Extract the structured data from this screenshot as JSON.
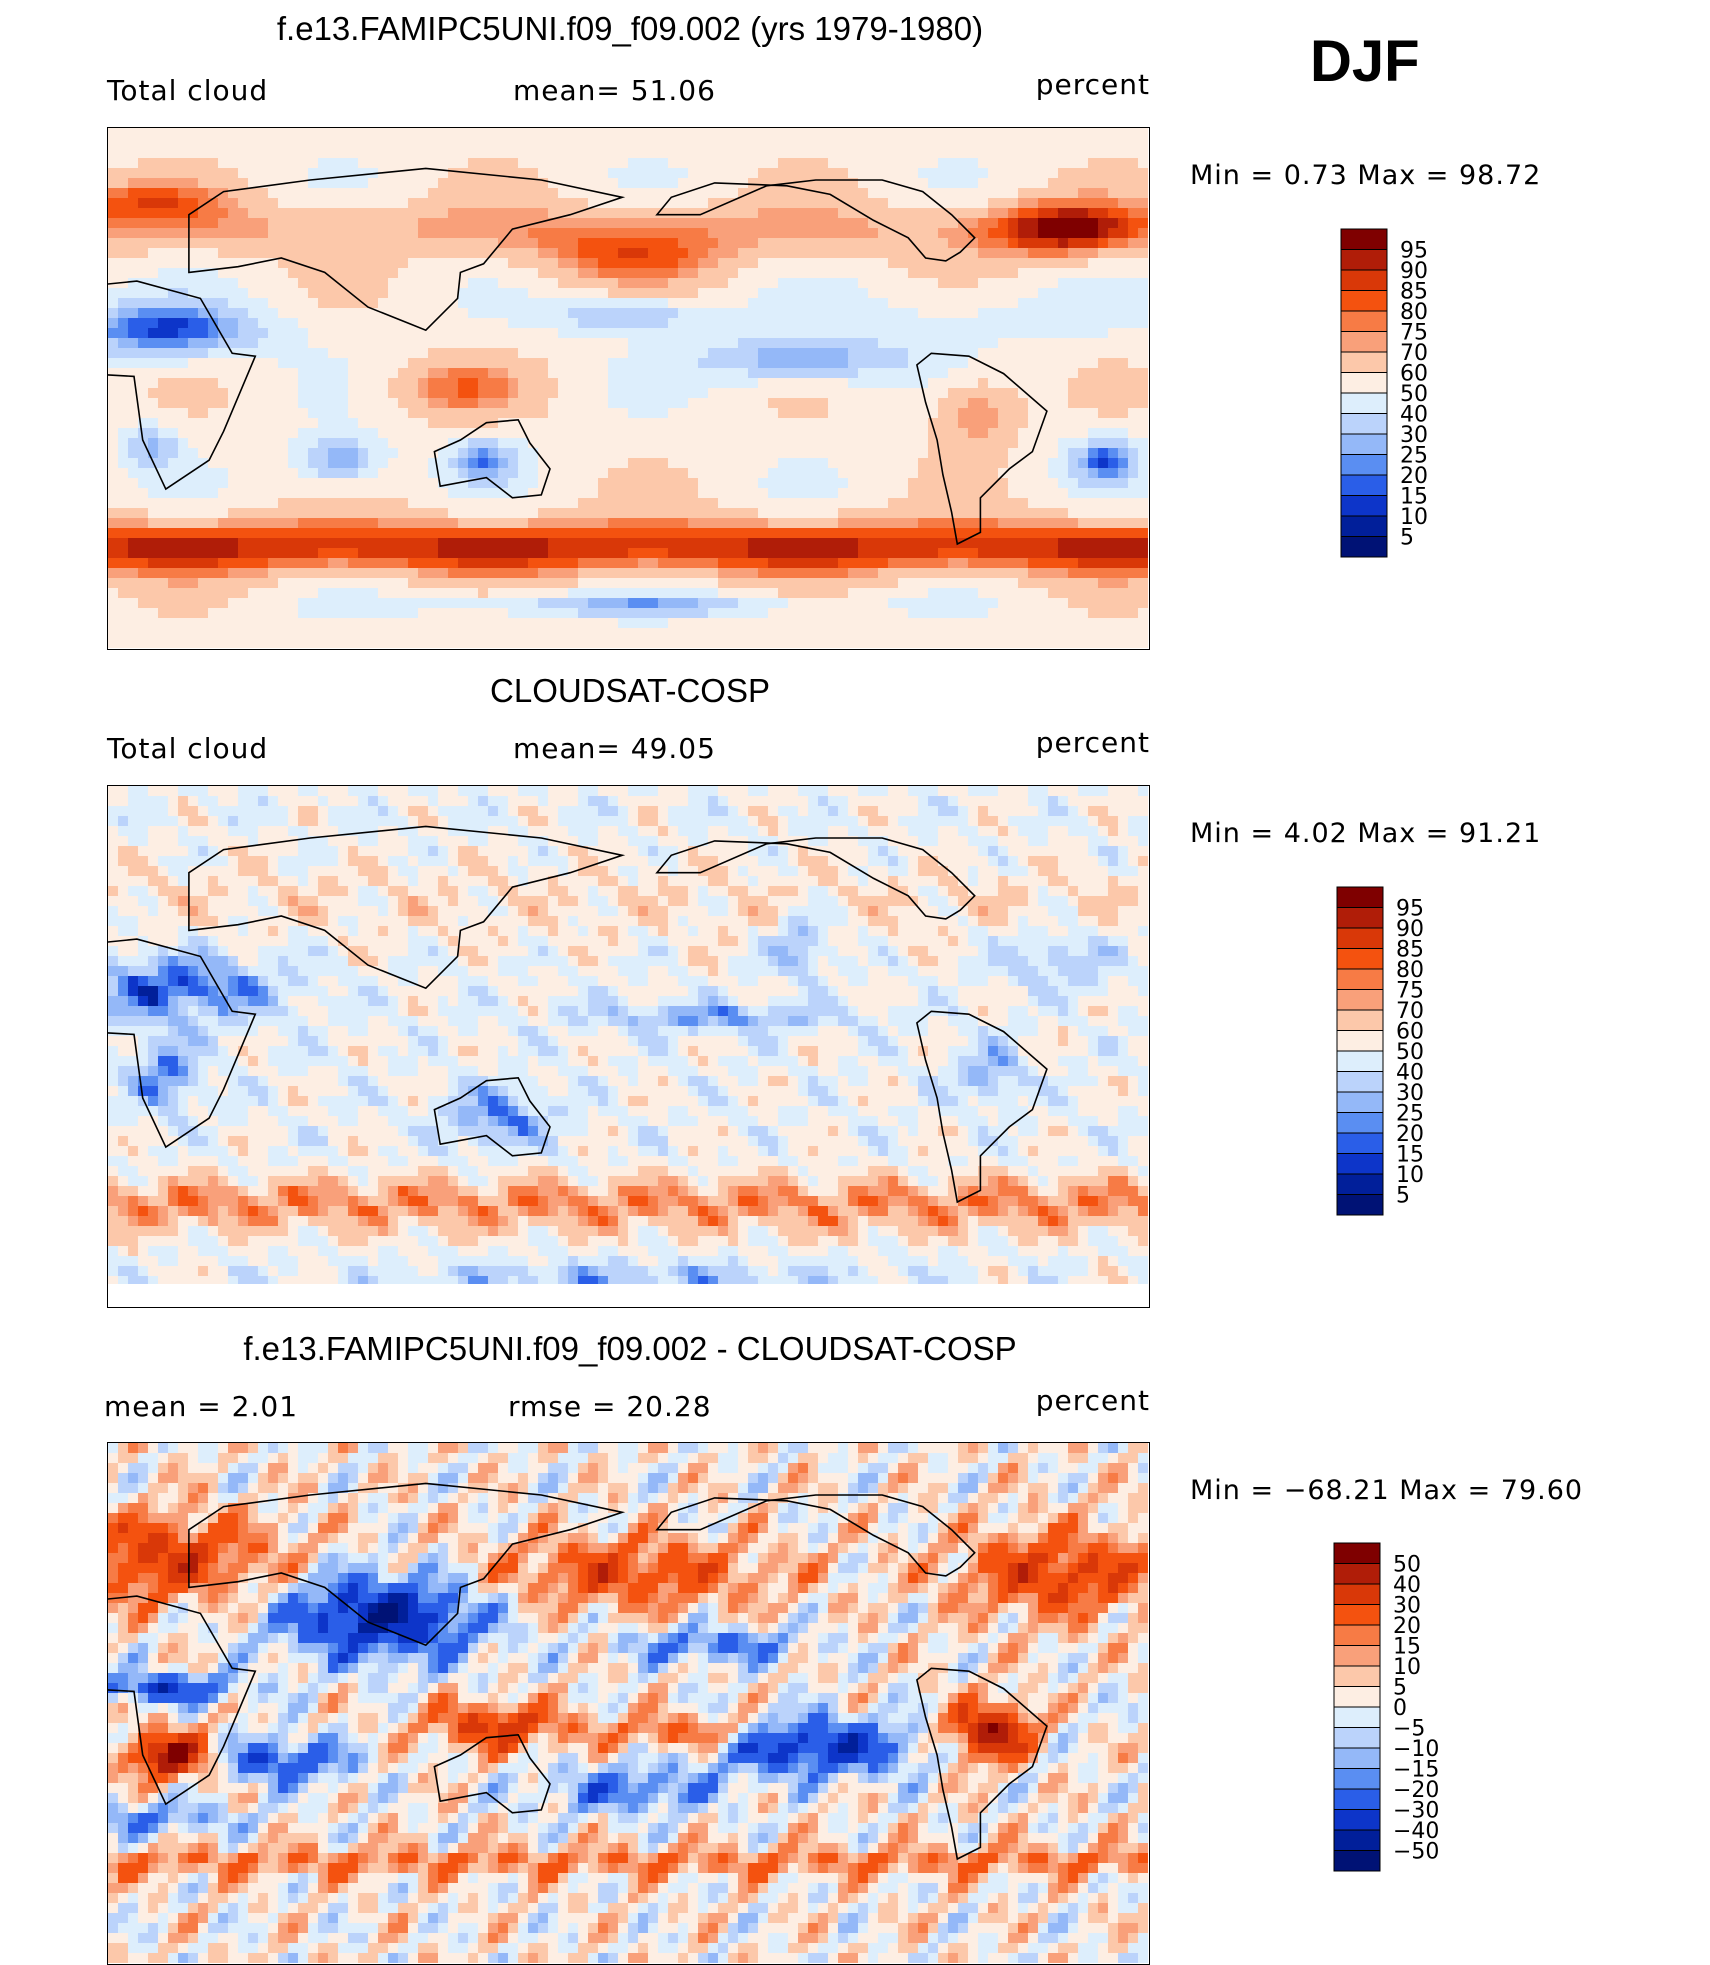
{
  "season": "DJF",
  "panels": [
    {
      "title": "f.e13.FAMIPC5UNI.f09_f09.002 (yrs 1979-1980)",
      "left_label": "Total cloud",
      "mid_label": "mean=   51.06",
      "right_label": "percent",
      "minmax": "Min  =     0.73  Max  =    98.72",
      "colorbar_levels": [
        "95",
        "90",
        "85",
        "80",
        "75",
        "70",
        "60",
        "50",
        "40",
        "30",
        "25",
        "20",
        "15",
        "10",
        "5"
      ]
    },
    {
      "title": "CLOUDSAT-COSP",
      "left_label": "Total cloud",
      "mid_label": "mean=   49.05",
      "right_label": "percent",
      "minmax": "Min  =     4.02  Max  =    91.21",
      "colorbar_levels": [
        "95",
        "90",
        "85",
        "80",
        "75",
        "70",
        "60",
        "50",
        "40",
        "30",
        "25",
        "20",
        "15",
        "10",
        "5"
      ]
    },
    {
      "title": "f.e13.FAMIPC5UNI.f09_f09.002 - CLOUDSAT-COSP",
      "left_label": "mean  =     2.01",
      "mid_label": "rmse  =    20.28",
      "right_label": "percent",
      "minmax": "Min  = −68.21  Max  =    79.60",
      "colorbar_levels": [
        "50",
        "40",
        "30",
        "20",
        "15",
        "10",
        "5",
        "0",
        "−5",
        "−10",
        "−15",
        "−20",
        "−30",
        "−40",
        "−50"
      ]
    }
  ],
  "colors": {
    "palette": [
      "#7f0000",
      "#b01d08",
      "#d93808",
      "#f4520f",
      "#f77b45",
      "#f9a07a",
      "#fcc8aa",
      "#fdeee3",
      "#ddeefc",
      "#bbd3fb",
      "#94b8f8",
      "#5a8ef2",
      "#2a5ee8",
      "#0d35c9",
      "#011f9a",
      "#001275"
    ]
  },
  "chart_data": [
    {
      "type": "heatmap",
      "title": "f.e13.FAMIPC5UNI.f09_f09.002 (yrs 1979-1980)",
      "variable": "Total cloud",
      "units": "percent",
      "mean": 51.06,
      "min": 0.73,
      "max": 98.72,
      "contour_levels": [
        5,
        10,
        15,
        20,
        25,
        30,
        40,
        50,
        60,
        70,
        75,
        80,
        85,
        90,
        95
      ]
    },
    {
      "type": "heatmap",
      "title": "CLOUDSAT-COSP",
      "variable": "Total cloud",
      "units": "percent",
      "mean": 49.05,
      "min": 4.02,
      "max": 91.21,
      "contour_levels": [
        5,
        10,
        15,
        20,
        25,
        30,
        40,
        50,
        60,
        70,
        75,
        80,
        85,
        90,
        95
      ]
    },
    {
      "type": "heatmap",
      "title": "f.e13.FAMIPC5UNI.f09_f09.002 - CLOUDSAT-COSP",
      "units": "percent",
      "mean": 2.01,
      "rmse": 20.28,
      "min": -68.21,
      "max": 79.6,
      "contour_levels": [
        -50,
        -40,
        -30,
        -20,
        -15,
        -10,
        -5,
        0,
        5,
        10,
        15,
        20,
        30,
        40,
        50
      ]
    }
  ]
}
